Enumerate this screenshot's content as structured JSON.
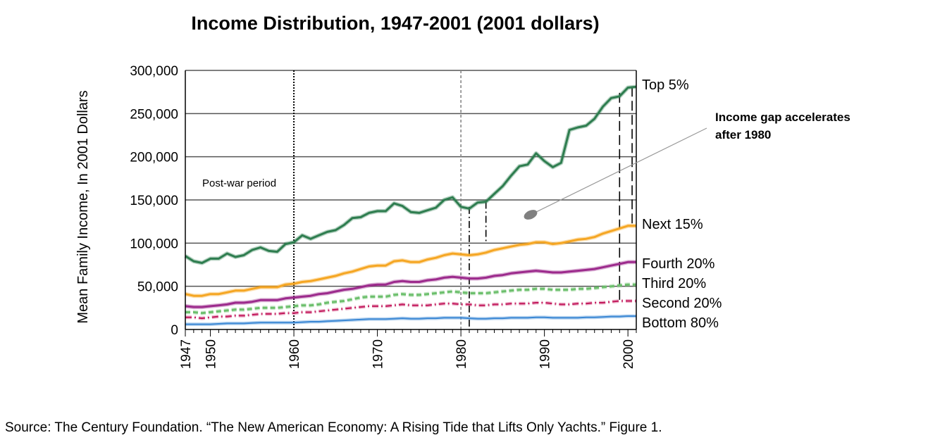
{
  "chart_data": {
    "type": "line",
    "title": "Income Distribution, 1947-2001 (2001 dollars)",
    "ylabel": "Mean Family Income, In 2001 Dollars",
    "xlabel": "",
    "xlim": [
      1947,
      2001
    ],
    "ylim": [
      0,
      300000
    ],
    "y_ticks": [
      0,
      50000,
      100000,
      150000,
      200000,
      250000,
      300000
    ],
    "y_tick_labels": [
      "0",
      "50,000",
      "100,000",
      "150,000",
      "200,000",
      "250,000",
      "300,000"
    ],
    "x_ticks": [
      1947,
      1950,
      1960,
      1970,
      1980,
      1990,
      2000
    ],
    "x_tick_labels": [
      "1947",
      "1950",
      "1960",
      "1970",
      "1980",
      "1990",
      "2000"
    ],
    "grid": "horizontal",
    "x": [
      1947,
      1948,
      1949,
      1950,
      1951,
      1952,
      1953,
      1954,
      1955,
      1956,
      1957,
      1958,
      1959,
      1960,
      1961,
      1962,
      1963,
      1964,
      1965,
      1966,
      1967,
      1968,
      1969,
      1970,
      1971,
      1972,
      1973,
      1974,
      1975,
      1976,
      1977,
      1978,
      1979,
      1980,
      1981,
      1982,
      1983,
      1984,
      1985,
      1986,
      1987,
      1988,
      1989,
      1990,
      1991,
      1992,
      1993,
      1994,
      1995,
      1996,
      1997,
      1998,
      1999,
      2000,
      2001
    ],
    "series": [
      {
        "name": "Top 5%",
        "color": "#2e7d4f",
        "style": "solid",
        "width": 3,
        "values": [
          85000,
          79000,
          77000,
          82000,
          82000,
          88000,
          84000,
          86000,
          92000,
          95000,
          91000,
          90000,
          99000,
          101000,
          109000,
          105000,
          109000,
          113000,
          115000,
          121000,
          129000,
          130000,
          135000,
          137000,
          137000,
          146000,
          143000,
          136000,
          135000,
          138000,
          141000,
          150000,
          153000,
          142000,
          140000,
          147000,
          148000,
          157000,
          166000,
          178000,
          189000,
          191000,
          204000,
          195000,
          188000,
          193000,
          231000,
          234000,
          236000,
          244000,
          258000,
          268000,
          270000,
          280000,
          281000
        ]
      },
      {
        "name": "Next 15%",
        "color": "#f5a623",
        "style": "solid",
        "width": 3,
        "values": [
          41000,
          39000,
          39000,
          41000,
          41000,
          43000,
          45000,
          45000,
          47000,
          49000,
          49000,
          49000,
          52000,
          53000,
          55000,
          56000,
          58000,
          60000,
          62000,
          65000,
          67000,
          70000,
          73000,
          74000,
          74000,
          79000,
          80000,
          78000,
          78000,
          81000,
          83000,
          86000,
          88000,
          87000,
          86000,
          87000,
          89000,
          92000,
          94000,
          96000,
          98000,
          99000,
          101000,
          101000,
          99000,
          100000,
          102000,
          104000,
          105000,
          107000,
          111000,
          114000,
          117000,
          120000,
          120000
        ]
      },
      {
        "name": "Fourth 20%",
        "color": "#9c2a8c",
        "style": "solid",
        "width": 3,
        "values": [
          27000,
          26000,
          26000,
          27000,
          28000,
          29000,
          31000,
          31000,
          32000,
          34000,
          34000,
          34000,
          36000,
          37000,
          38000,
          39000,
          41000,
          42000,
          44000,
          46000,
          47000,
          49000,
          51000,
          52000,
          52000,
          55000,
          56000,
          55000,
          55000,
          57000,
          58000,
          60000,
          61000,
          60000,
          59000,
          59000,
          60000,
          62000,
          63000,
          65000,
          66000,
          67000,
          68000,
          67000,
          66000,
          66000,
          67000,
          68000,
          69000,
          70000,
          72000,
          74000,
          76000,
          78000,
          78000
        ]
      },
      {
        "name": "Third 20%",
        "color": "#6cbf6c",
        "style": "dashed",
        "width": 3,
        "values": [
          20000,
          20000,
          19000,
          20000,
          21000,
          22000,
          23000,
          23000,
          24000,
          25000,
          25000,
          25000,
          26000,
          27000,
          28000,
          28000,
          29000,
          31000,
          32000,
          33000,
          35000,
          37000,
          38000,
          38000,
          38000,
          40000,
          41000,
          40000,
          40000,
          41000,
          42000,
          43000,
          44000,
          43000,
          42000,
          42000,
          42000,
          43000,
          44000,
          45000,
          46000,
          46000,
          47000,
          47000,
          46000,
          46000,
          46000,
          47000,
          47000,
          48000,
          49000,
          50000,
          51000,
          52000,
          52000
        ]
      },
      {
        "name": "Second 20%",
        "color": "#c2185b",
        "style": "dashdot",
        "width": 2,
        "values": [
          14000,
          14000,
          13000,
          14000,
          15000,
          15000,
          16000,
          16000,
          17000,
          18000,
          18000,
          18000,
          19000,
          19000,
          20000,
          20000,
          21000,
          22000,
          23000,
          24000,
          25000,
          26000,
          27000,
          27000,
          27000,
          28000,
          29000,
          28000,
          28000,
          28000,
          29000,
          30000,
          30000,
          29000,
          29000,
          28000,
          28000,
          29000,
          29000,
          30000,
          30000,
          30000,
          31000,
          31000,
          30000,
          29000,
          29000,
          30000,
          30000,
          31000,
          31000,
          32000,
          33000,
          33000,
          33000
        ]
      },
      {
        "name": "Bottom 80%",
        "color": "#3a87d4",
        "style": "solid",
        "width": 2,
        "values": [
          6000,
          6000,
          6000,
          6000,
          6500,
          7000,
          7000,
          7000,
          7500,
          8000,
          8000,
          8000,
          8000,
          8000,
          8500,
          9000,
          9000,
          9500,
          10000,
          10500,
          11000,
          11500,
          12000,
          12000,
          12000,
          12500,
          13000,
          12500,
          12500,
          13000,
          13000,
          13500,
          13500,
          13500,
          13000,
          12500,
          12500,
          13000,
          13000,
          13500,
          13500,
          13500,
          14000,
          14000,
          13500,
          13500,
          13500,
          13500,
          14000,
          14000,
          14500,
          15000,
          15000,
          15500,
          15500
        ]
      }
    ],
    "vlines": [
      {
        "x": 1960,
        "style": "dotted",
        "color": "#000000"
      },
      {
        "x": 1980,
        "style": "dashed",
        "color": "#888888"
      },
      {
        "x": 1981,
        "style": "dashdot",
        "color": "#000000",
        "y_top": 142000,
        "y_bottom": 0
      },
      {
        "x": 1983,
        "style": "dashdot",
        "color": "#000000",
        "y_top": 148000,
        "y_bottom": 100000
      },
      {
        "x": 1999,
        "style": "longdash",
        "color": "#000000",
        "y_top": 274000,
        "y_bottom": 33000
      },
      {
        "x": 2000.5,
        "style": "longdash",
        "color": "#000000",
        "y_top": 281000,
        "y_bottom": 120000
      }
    ],
    "annotations": [
      {
        "text": "Post-war period",
        "x": 1947.5,
        "y": 170000
      },
      {
        "text_lines": [
          "Income gap accelerates",
          "after 1980"
        ],
        "bold": true
      }
    ],
    "source": "Source: The Century Foundation. “The New American Economy: A Rising Tide that Lifts Only Yachts.”  Figure 1."
  }
}
